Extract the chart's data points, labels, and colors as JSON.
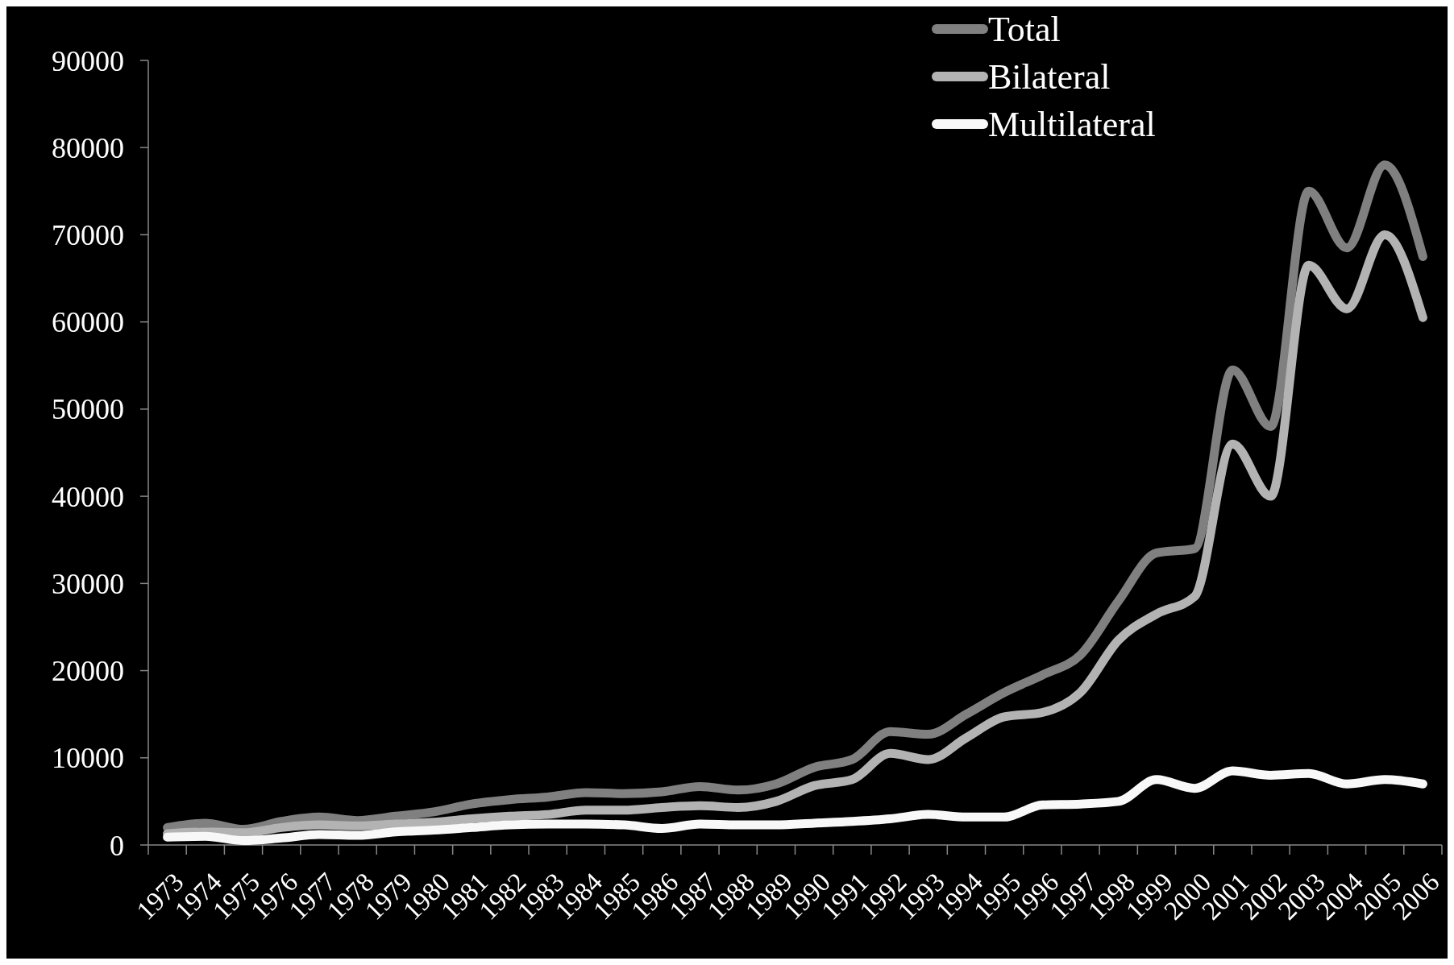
{
  "chart_data": {
    "type": "line",
    "categories": [
      "1973",
      "1974",
      "1975",
      "1976",
      "1977",
      "1978",
      "1979",
      "1980",
      "1981",
      "1982",
      "1983",
      "1984",
      "1985",
      "1986",
      "1987",
      "1988",
      "1989",
      "1990",
      "1991",
      "1992",
      "1993",
      "1994",
      "1995",
      "1996",
      "1997",
      "1998",
      "1999",
      "2000",
      "2001",
      "2002",
      "2003",
      "2004",
      "2005",
      "2006"
    ],
    "series": [
      {
        "name": "Total",
        "color": "#808080",
        "values": [
          2000,
          2500,
          1800,
          2700,
          3200,
          2800,
          3300,
          3800,
          4700,
          5200,
          5500,
          6000,
          5900,
          6100,
          6700,
          6300,
          7000,
          8900,
          9800,
          13000,
          12700,
          15000,
          17500,
          19500,
          21800,
          28000,
          33500,
          34000,
          54500,
          48000,
          75000,
          68500,
          78000,
          67500
        ]
      },
      {
        "name": "Bilateral",
        "color": "#b3b3b3",
        "values": [
          1300,
          1500,
          1400,
          2000,
          2300,
          2200,
          2400,
          2600,
          3000,
          3300,
          3500,
          4000,
          4000,
          4300,
          4500,
          4300,
          5000,
          6800,
          7500,
          10500,
          9800,
          12300,
          14700,
          15200,
          17500,
          23500,
          26500,
          28500,
          46000,
          40000,
          66500,
          61500,
          70000,
          60500
        ]
      },
      {
        "name": "Multilateral",
        "color": "#f8f8f8",
        "values": [
          900,
          1000,
          500,
          800,
          1200,
          1100,
          1500,
          1700,
          2000,
          2300,
          2400,
          2400,
          2300,
          1900,
          2400,
          2300,
          2300,
          2500,
          2700,
          3000,
          3500,
          3200,
          3200,
          4600,
          4700,
          5000,
          7500,
          6500,
          8500,
          8000,
          8200,
          7000,
          7500,
          7000
        ]
      }
    ],
    "ylim": [
      0,
      90000
    ],
    "yticks": [
      0,
      10000,
      20000,
      30000,
      40000,
      50000,
      60000,
      70000,
      80000,
      90000
    ],
    "grid": false,
    "legend": "top right",
    "marker": "none",
    "line_style": "solid"
  }
}
